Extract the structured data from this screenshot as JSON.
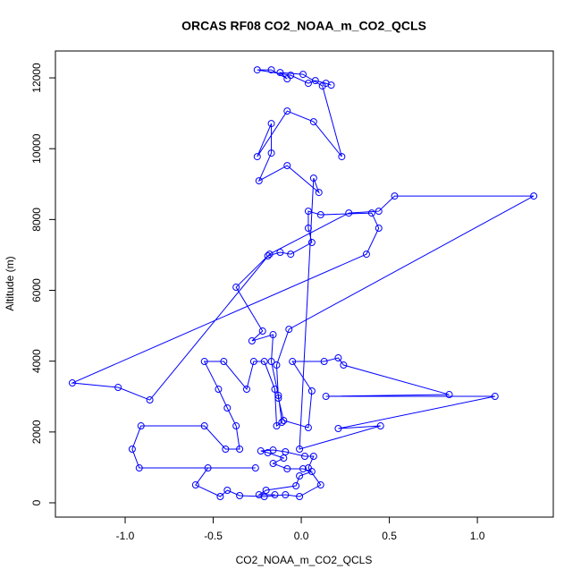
{
  "chart_data": {
    "type": "line",
    "title": "ORCAS RF08 CO2_NOAA_m_CO2_QCLS",
    "x_label": "CO2_NOAA_m_CO2_QCLS",
    "y_label": "Altitude (m)",
    "xlim": [
      -1.396,
      1.431
    ],
    "ylim": [
      -404,
      12759
    ],
    "xticks": [
      {
        "value": -1,
        "label": "-1.0"
      },
      -0.5,
      {
        "value": 0,
        "label": "0.0"
      },
      0.5,
      {
        "value": 1,
        "label": "1.0"
      }
    ],
    "yticks": [
      0,
      2000,
      4000,
      6000,
      8000,
      10000,
      12000
    ],
    "series": [
      {
        "color": "#0000ff",
        "x": [
          -0.15,
          -0.24,
          -0.2,
          -0.03,
          -0.01,
          0.06,
          0.01,
          -0.08,
          -0.16,
          -0.1,
          -0.19,
          -0.23,
          -0.16,
          -0.09,
          0.02,
          0.07,
          0.04,
          0.11,
          -0.01,
          -0.09,
          -0.21,
          -0.35,
          -0.42,
          -0.46,
          -0.6,
          -0.53,
          -0.26,
          -0.92,
          -0.96,
          -0.91,
          -0.55,
          -0.43,
          -0.35,
          -0.37,
          -0.42,
          -0.47,
          -0.55,
          -0.44,
          -0.31,
          -0.27,
          -0.21,
          -0.15,
          -0.14,
          -0.11,
          -0.13,
          -0.17,
          -0.16,
          -0.28,
          -0.22,
          -0.37,
          -0.19,
          -0.12,
          -0.06,
          0.06,
          0.04,
          0.04,
          0.11,
          0.4,
          0.44,
          0.37,
          -1.3,
          -1.04,
          -0.86,
          -0.18,
          0.27,
          0.44,
          0.53,
          1.32,
          -0.07,
          -0.14,
          -0.13,
          -0.1,
          0.04,
          0.06,
          -0.05,
          0.13,
          0.21,
          0.24,
          0.84,
          0.14,
          1.1,
          0.21,
          0.45,
          -0.01,
          0.07,
          0.1,
          -0.08,
          -0.24,
          -0.17,
          -0.17,
          -0.25,
          -0.08,
          0.07,
          0.23,
          0.12,
          0.01,
          -0.12,
          -0.08,
          -0.17,
          -0.25,
          -0.06,
          0.04,
          0.08,
          0.14,
          0.17
        ],
        "values": [
          227,
          227,
          354,
          480,
          758,
          884,
          960,
          960,
          1111,
          1263,
          1415,
          1465,
          1490,
          1440,
          1314,
          1314,
          985,
          505,
          177,
          227,
          177,
          202,
          354,
          177,
          505,
          985,
          985,
          985,
          1516,
          2172,
          2172,
          1516,
          1516,
          2172,
          2678,
          3208,
          3991,
          3991,
          3208,
          3991,
          3991,
          3208,
          2172,
          2273,
          3031,
          3991,
          4749,
          4572,
          4850,
          6088,
          6972,
          7073,
          7022,
          7351,
          7755,
          8235,
          8134,
          8184,
          7755,
          7022,
          3385,
          3259,
          2905,
          7022,
          8184,
          8235,
          8664,
          8664,
          4900,
          3890,
          2955,
          2324,
          2122,
          3158,
          3991,
          3991,
          4092,
          3890,
          3056,
          3006,
          3006,
          2097,
          2172,
          1516,
          9169,
          8765,
          9523,
          9094,
          9877,
          10710,
          9776,
          11064,
          10761,
          9776,
          11771,
          12100,
          12150,
          11973,
          12226,
          12226,
          12074,
          11847,
          11923,
          11847,
          11796
        ]
      }
    ]
  }
}
